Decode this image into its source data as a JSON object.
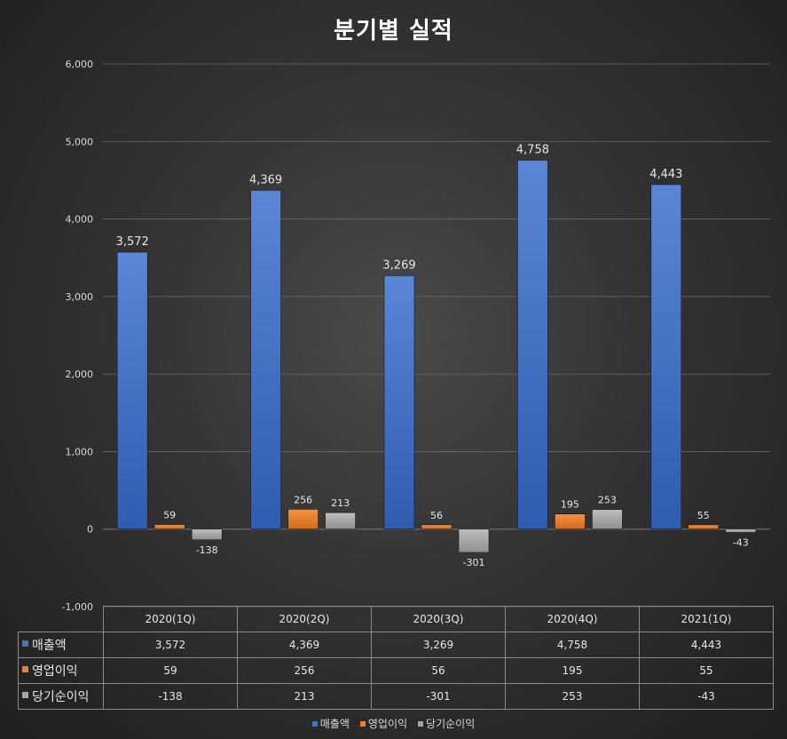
{
  "chart_data": {
    "type": "bar",
    "title": "분기별 실적",
    "categories": [
      "2020(1Q)",
      "2020(2Q)",
      "2020(3Q)",
      "2020(4Q)",
      "2021(1Q)"
    ],
    "series": [
      {
        "name": "매출액",
        "color": "#4472c4",
        "values": [
          3572,
          4369,
          3269,
          4758,
          4443
        ],
        "labels": [
          "3,572",
          "4,369",
          "3,269",
          "4,758",
          "4,443"
        ]
      },
      {
        "name": "영업이익",
        "color": "#ed7d31",
        "values": [
          59,
          256,
          56,
          195,
          55
        ],
        "labels": [
          "59",
          "256",
          "56",
          "195",
          "55"
        ]
      },
      {
        "name": "당기순이익",
        "color": "#a5a5a5",
        "values": [
          -138,
          213,
          -301,
          253,
          -43
        ],
        "labels": [
          "-138",
          "213",
          "-301",
          "253",
          "-43"
        ]
      }
    ],
    "ylim": [
      -1000,
      6000
    ],
    "yticks": [
      -1000,
      0,
      1000,
      2000,
      3000,
      4000,
      5000,
      6000
    ],
    "ytick_labels": [
      "-1,000",
      "0",
      "1,000",
      "2,000",
      "3,000",
      "4,000",
      "5,000",
      "6,000"
    ],
    "grid": true,
    "legend": "bottom",
    "data_table": true
  }
}
